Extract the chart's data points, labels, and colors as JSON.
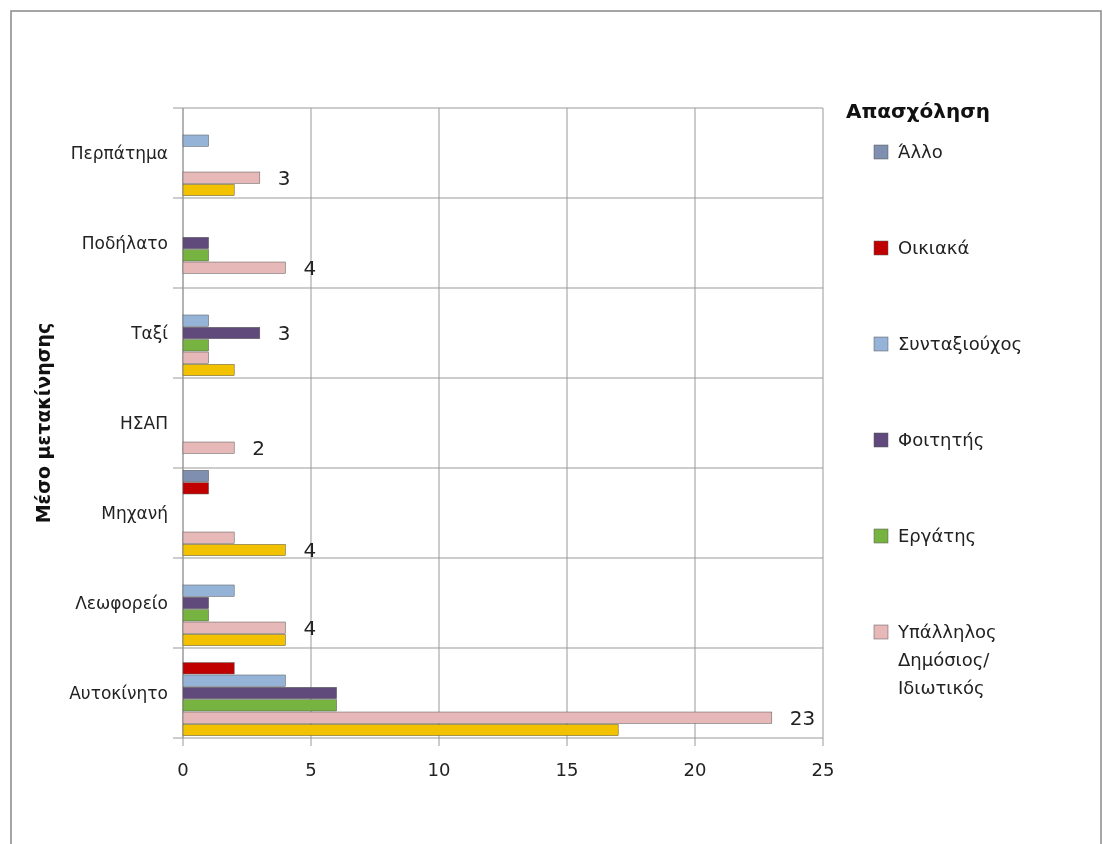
{
  "chart_data": {
    "type": "bar",
    "orientation": "horizontal",
    "ylabel": "Μέσο μετακίνησης",
    "legend_title": "Απασχόληση",
    "legend": "right",
    "categories": [
      "Περπάτημα",
      "Ποδήλατο",
      "Ταξί",
      "ΗΣΑΠ",
      "Μηχανή",
      "Λεωφορείο",
      "Αυτοκίνητο"
    ],
    "series": [
      {
        "color": "#f2c200",
        "values": [
          2,
          0,
          2,
          0,
          4,
          4,
          17
        ],
        "value_labels": [
          null,
          null,
          null,
          null,
          "4",
          null,
          null
        ]
      },
      {
        "name": "Υπάλληλος Δημόσιος/ Ιδιωτικός",
        "color": "#e6b9b8",
        "values": [
          3,
          4,
          1,
          2,
          2,
          4,
          23
        ],
        "value_labels": [
          "3",
          "4",
          null,
          "2",
          null,
          "4",
          "23"
        ]
      },
      {
        "name": "Εργάτης",
        "color": "#77b340",
        "values": [
          0,
          1,
          1,
          0,
          0,
          1,
          6
        ]
      },
      {
        "name": "Φοιτητής",
        "color": "#604a7b",
        "values": [
          0,
          1,
          3,
          0,
          0,
          1,
          6
        ],
        "value_labels": [
          null,
          null,
          "3",
          null,
          null,
          null,
          null
        ]
      },
      {
        "name": "Συνταξιούχος",
        "color": "#95b3d7",
        "values": [
          1,
          0,
          1,
          0,
          0,
          2,
          4
        ]
      },
      {
        "name": "Οικιακά",
        "color": "#c00000",
        "values": [
          0,
          0,
          0,
          0,
          1,
          0,
          2
        ]
      },
      {
        "name": "Άλλο",
        "color": "#7f8fb0",
        "values": [
          0,
          0,
          0,
          0,
          1,
          0,
          0
        ]
      }
    ],
    "xlim": [
      0,
      25
    ],
    "xticks": [
      0,
      5,
      10,
      15,
      20,
      25
    ],
    "grid": true
  }
}
